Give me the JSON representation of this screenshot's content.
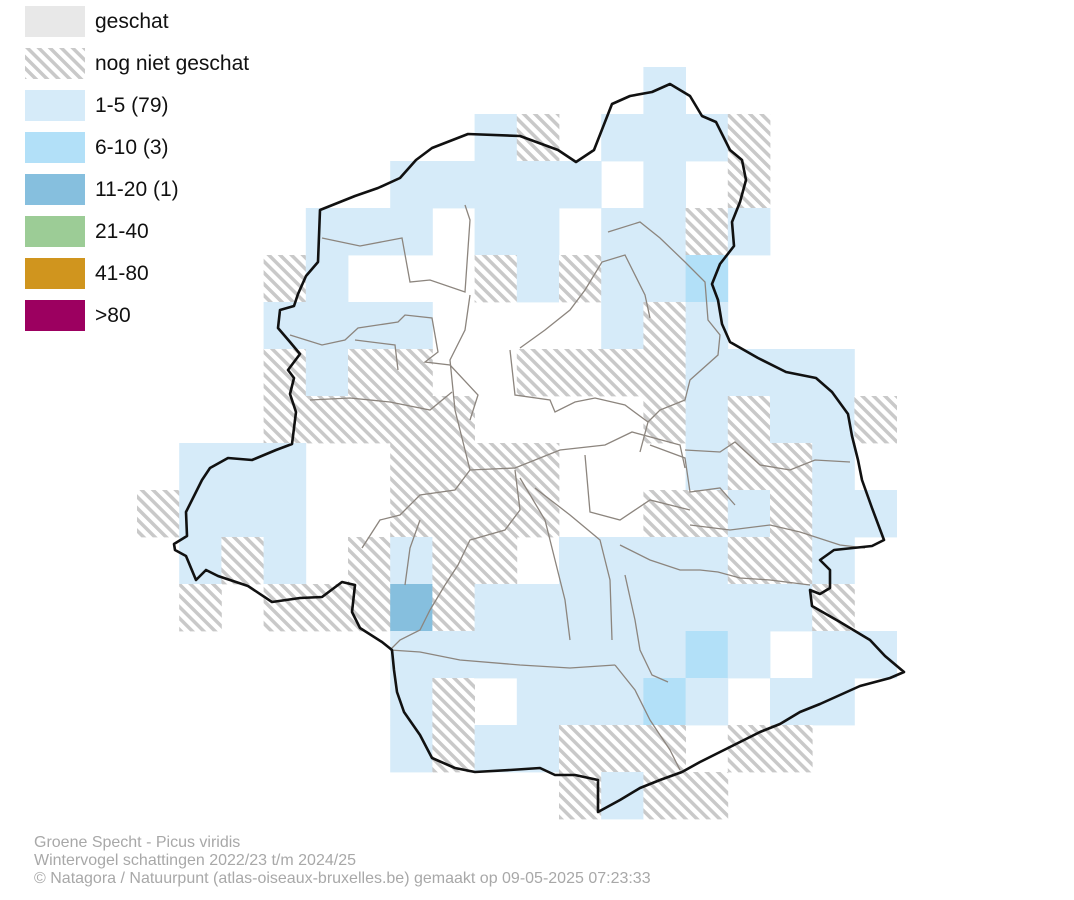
{
  "legend": [
    {
      "key": "estimated",
      "label": "geschat",
      "color": "#e8e8e8",
      "pattern": false
    },
    {
      "key": "not-estimated",
      "label": "nog niet geschat",
      "color": "#c9c9c9",
      "pattern": true
    },
    {
      "key": "1-5",
      "label": "1-5 (79)",
      "color": "#d6ebf9",
      "pattern": false
    },
    {
      "key": "6-10",
      "label": "6-10 (3)",
      "color": "#b2e0f8",
      "pattern": false
    },
    {
      "key": "11-20",
      "label": "11-20 (1)",
      "color": "#86bfde",
      "pattern": false
    },
    {
      "key": "21-40",
      "label": "21-40",
      "color": "#9ccc96",
      "pattern": false
    },
    {
      "key": "41-80",
      "label": "41-80",
      "color": "#d0951e",
      "pattern": false
    },
    {
      "key": ">80",
      "label": ">80",
      "color": "#9c0060",
      "pattern": false
    }
  ],
  "footer": {
    "species": "Groene Specht - Picus viridis",
    "dataset": "Wintervogel schattingen 2022/23 t/m 2024/25",
    "credit": "© Natagora / Natuurpunt (atlas-oiseaux-bruxelles.be) gemaakt op 09-05-2025 07:23:33"
  }
}
